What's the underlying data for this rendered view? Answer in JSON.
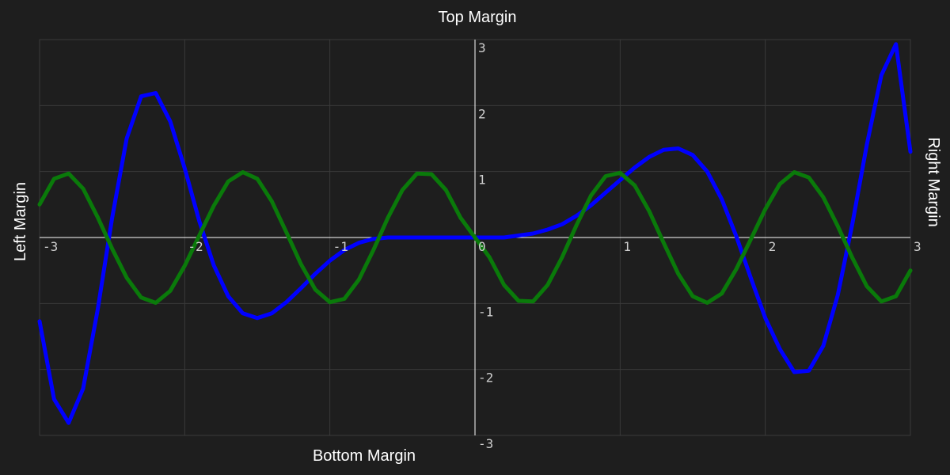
{
  "chart_data": {
    "type": "line",
    "margin_labels": {
      "top": "Top Margin",
      "bottom": "Bottom Margin",
      "left": "Left Margin",
      "right": "Right Margin"
    },
    "xlim": [
      -3,
      3
    ],
    "ylim": [
      -3,
      3
    ],
    "x_ticks": [
      {
        "value": -3,
        "label": "-3"
      },
      {
        "value": -2,
        "label": "-2"
      },
      {
        "value": -1,
        "label": "-1"
      },
      {
        "value": 0,
        "label": "0"
      },
      {
        "value": 1,
        "label": "1"
      },
      {
        "value": 2,
        "label": "2"
      },
      {
        "value": 3,
        "label": "3"
      }
    ],
    "y_ticks": [
      {
        "value": 3,
        "label": "3"
      },
      {
        "value": 2,
        "label": "2"
      },
      {
        "value": 1,
        "label": "1"
      },
      {
        "value": -1,
        "label": "-1"
      },
      {
        "value": -2,
        "label": "-2"
      },
      {
        "value": -3,
        "label": "-3"
      }
    ],
    "grid": true,
    "legend": "none",
    "colors": {
      "background": "#1e1e1e",
      "grid": "#3a3a3a",
      "axis": "#ffffff",
      "tick_text": "#cfcfcf",
      "label_text": "#ffffff"
    },
    "series": [
      {
        "color": "#0000ff",
        "x": [
          -3.0,
          -2.9,
          -2.8,
          -2.7,
          -2.6,
          -2.5,
          -2.4,
          -2.3,
          -2.2,
          -2.1,
          -2.0,
          -1.9,
          -1.8,
          -1.7,
          -1.6,
          -1.5,
          -1.4,
          -1.3,
          -1.2,
          -1.1,
          -1.0,
          -0.9,
          -0.8,
          -0.7,
          -0.6,
          -0.5,
          -0.4,
          -0.3,
          -0.2,
          -0.1,
          0.0,
          0.1,
          0.2,
          0.3,
          0.4,
          0.5,
          0.6,
          0.7,
          0.8,
          0.9,
          1.0,
          1.1,
          1.2,
          1.3,
          1.4,
          1.5,
          1.6,
          1.7,
          1.8,
          1.9,
          2.0,
          2.1,
          2.2,
          2.3,
          2.4,
          2.5,
          2.6,
          2.7,
          2.8,
          2.9,
          3.0
        ],
        "y": [
          -1.27,
          -2.45,
          -2.81,
          -2.29,
          -1.1,
          0.3,
          1.5,
          2.14,
          2.19,
          1.76,
          1.05,
          0.25,
          -0.42,
          -0.89,
          -1.15,
          -1.22,
          -1.15,
          -0.98,
          -0.77,
          -0.55,
          -0.35,
          -0.19,
          -0.08,
          -0.02,
          0.0,
          0.0,
          0.0,
          0.0,
          0.0,
          0.0,
          0.0,
          0.0,
          0.0,
          0.03,
          0.06,
          0.12,
          0.2,
          0.33,
          0.49,
          0.68,
          0.87,
          1.06,
          1.22,
          1.33,
          1.35,
          1.25,
          1.0,
          0.58,
          0.02,
          -0.61,
          -1.22,
          -1.69,
          -2.04,
          -2.02,
          -1.64,
          -0.87,
          0.21,
          1.41,
          2.46,
          2.93,
          1.3
        ]
      },
      {
        "color": "#0a7a0a",
        "x": [
          -3.0,
          -2.9,
          -2.8,
          -2.7,
          -2.6,
          -2.5,
          -2.4,
          -2.3,
          -2.2,
          -2.1,
          -2.0,
          -1.9,
          -1.8,
          -1.7,
          -1.6,
          -1.5,
          -1.4,
          -1.3,
          -1.2,
          -1.1,
          -1.0,
          -0.9,
          -0.8,
          -0.7,
          -0.6,
          -0.5,
          -0.4,
          -0.3,
          -0.2,
          -0.1,
          0.0,
          0.1,
          0.2,
          0.3,
          0.4,
          0.5,
          0.6,
          0.7,
          0.8,
          0.9,
          1.0,
          1.1,
          1.2,
          1.3,
          1.4,
          1.5,
          1.6,
          1.7,
          1.8,
          1.9,
          2.0,
          2.1,
          2.2,
          2.3,
          2.4,
          2.5,
          2.6,
          2.7,
          2.8,
          2.9,
          3.0
        ],
        "y": [
          0.5,
          0.89,
          0.97,
          0.74,
          0.31,
          -0.17,
          -0.61,
          -0.91,
          -0.99,
          -0.81,
          -0.43,
          0.03,
          0.48,
          0.85,
          0.99,
          0.89,
          0.55,
          0.08,
          -0.4,
          -0.79,
          -0.98,
          -0.93,
          -0.64,
          -0.19,
          0.3,
          0.72,
          0.97,
          0.96,
          0.72,
          0.3,
          0.0,
          -0.3,
          -0.72,
          -0.96,
          -0.97,
          -0.72,
          -0.3,
          0.19,
          0.64,
          0.93,
          0.98,
          0.79,
          0.4,
          -0.08,
          -0.55,
          -0.89,
          -0.99,
          -0.85,
          -0.48,
          -0.03,
          0.43,
          0.81,
          0.99,
          0.91,
          0.61,
          0.17,
          -0.31,
          -0.74,
          -0.97,
          -0.89,
          -0.5
        ]
      }
    ]
  }
}
